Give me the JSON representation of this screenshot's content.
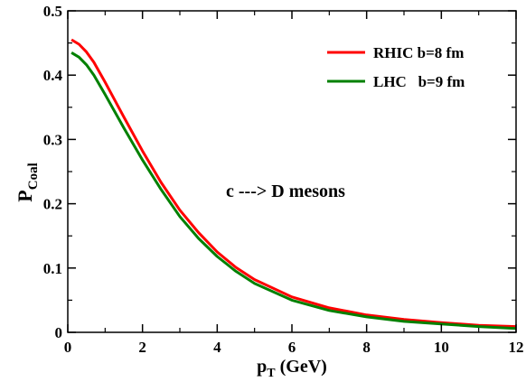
{
  "chart_data": {
    "type": "line",
    "title": "",
    "xlabel": "p",
    "xlabel_sub": "T",
    "xlabel_unit": " (GeV)",
    "ylabel": "P",
    "ylabel_sub": "Coal",
    "xlim": [
      0,
      12
    ],
    "ylim": [
      0,
      0.5
    ],
    "xticks": [
      "0",
      "2",
      "4",
      "6",
      "8",
      "10",
      "12"
    ],
    "yticks": [
      "0",
      "0.1",
      "0.2",
      "0.3",
      "0.4",
      "0.5"
    ],
    "grid": false,
    "legend_position": "top-right",
    "annotation": "c ---> D mesons",
    "series": [
      {
        "name": "RHIC b=8 fm",
        "color": "#ff0000",
        "x": [
          0.1,
          0.3,
          0.5,
          0.7,
          1.0,
          1.5,
          2.0,
          2.5,
          3.0,
          3.5,
          4.0,
          4.5,
          5.0,
          6.0,
          7.0,
          8.0,
          9.0,
          10.0,
          11.0,
          12.0
        ],
        "y": [
          0.455,
          0.448,
          0.436,
          0.42,
          0.389,
          0.335,
          0.282,
          0.233,
          0.19,
          0.155,
          0.125,
          0.101,
          0.082,
          0.055,
          0.038,
          0.027,
          0.02,
          0.015,
          0.011,
          0.009
        ]
      },
      {
        "name": "LHC   b=9 fm",
        "color": "#008000",
        "x": [
          0.1,
          0.3,
          0.5,
          0.7,
          1.0,
          1.5,
          2.0,
          2.5,
          3.0,
          3.5,
          4.0,
          4.5,
          5.0,
          6.0,
          7.0,
          8.0,
          9.0,
          10.0,
          11.0,
          12.0
        ],
        "y": [
          0.435,
          0.428,
          0.416,
          0.4,
          0.37,
          0.318,
          0.268,
          0.222,
          0.18,
          0.146,
          0.118,
          0.095,
          0.076,
          0.05,
          0.034,
          0.024,
          0.017,
          0.013,
          0.009,
          0.006
        ]
      }
    ]
  }
}
